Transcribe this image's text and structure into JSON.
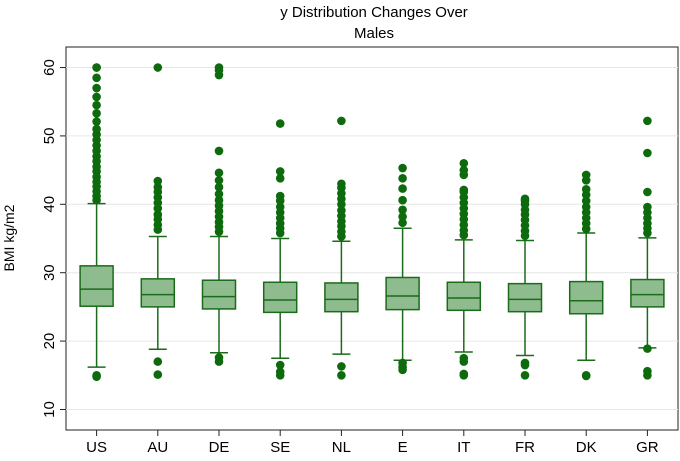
{
  "chart_data": {
    "type": "box",
    "title": "y Distribution Changes Over",
    "subtitle": "Males",
    "xlabel": "",
    "ylabel": "BMI kg/m2",
    "ylim": [
      7,
      63
    ],
    "yticks": [
      10,
      20,
      30,
      40,
      50,
      60
    ],
    "grid": true,
    "colors": {
      "box_fill": "#8fbc8f",
      "box_stroke": "#1a6b1a",
      "point": "#0d6b0d"
    },
    "categories": [
      "US",
      "AU",
      "DE",
      "SE",
      "NL",
      "E",
      "IT",
      "FR",
      "DK",
      "GR"
    ],
    "boxes": [
      {
        "label": "US",
        "whisker_low": 16.2,
        "q1": 25.1,
        "median": 27.6,
        "q3": 31.0,
        "whisker_high": 40.1,
        "outliers_low": [
          15.0,
          14.8
        ],
        "outliers_high": [
          40.6,
          41.2,
          41.9,
          42.6,
          43.3,
          44.0,
          44.8,
          45.5,
          46.3,
          47.0,
          47.8,
          48.6,
          49.4,
          50.2,
          51.0,
          52.1,
          53.3,
          54.5,
          55.7,
          57.0,
          58.5,
          60.0,
          60.0
        ]
      },
      {
        "label": "AU",
        "whisker_low": 18.8,
        "q1": 25.0,
        "median": 26.8,
        "q3": 29.1,
        "whisker_high": 35.3,
        "outliers_low": [
          17.0,
          15.1
        ],
        "outliers_high": [
          36.3,
          37.0,
          37.8,
          38.5,
          39.4,
          40.2,
          41.0,
          41.8,
          42.5,
          43.4,
          60.0
        ]
      },
      {
        "label": "DE",
        "whisker_low": 18.3,
        "q1": 24.7,
        "median": 26.5,
        "q3": 28.9,
        "whisker_high": 35.3,
        "outliers_low": [
          17.6,
          17.0
        ],
        "outliers_high": [
          36.0,
          36.7,
          37.4,
          38.2,
          39.0,
          39.8,
          40.6,
          41.5,
          42.5,
          43.5,
          44.6,
          47.8,
          58.9,
          59.6,
          60.0
        ]
      },
      {
        "label": "SE",
        "whisker_low": 17.5,
        "q1": 24.2,
        "median": 26.0,
        "q3": 28.6,
        "whisker_high": 35.0,
        "outliers_low": [
          16.5,
          15.5,
          15.0
        ],
        "outliers_high": [
          35.8,
          36.5,
          37.2,
          38.0,
          38.8,
          39.6,
          40.5,
          41.2,
          43.8,
          44.8,
          51.8
        ]
      },
      {
        "label": "NL",
        "whisker_low": 18.1,
        "q1": 24.3,
        "median": 26.1,
        "q3": 28.5,
        "whisker_high": 34.6,
        "outliers_low": [
          16.3,
          15.0
        ],
        "outliers_high": [
          35.3,
          36.0,
          36.8,
          37.5,
          38.3,
          39.1,
          40.0,
          40.8,
          41.6,
          42.4,
          43.0,
          52.2
        ]
      },
      {
        "label": "E",
        "whisker_low": 17.2,
        "q1": 24.6,
        "median": 26.6,
        "q3": 29.3,
        "whisker_high": 36.5,
        "outliers_low": [
          16.8,
          16.2,
          15.8
        ],
        "outliers_high": [
          37.3,
          38.2,
          39.2,
          40.6,
          42.3,
          43.8,
          45.3
        ]
      },
      {
        "label": "IT",
        "whisker_low": 18.4,
        "q1": 24.5,
        "median": 26.3,
        "q3": 28.6,
        "whisker_high": 34.8,
        "outliers_low": [
          17.5,
          17.0,
          15.2,
          15.0
        ],
        "outliers_high": [
          35.5,
          36.2,
          37.0,
          37.8,
          38.6,
          39.4,
          40.2,
          41.0,
          41.8,
          42.1,
          44.3,
          45.0,
          46.0
        ]
      },
      {
        "label": "FR",
        "whisker_low": 17.9,
        "q1": 24.3,
        "median": 26.1,
        "q3": 28.4,
        "whisker_high": 34.7,
        "outliers_low": [
          16.8,
          16.5,
          15.0
        ],
        "outliers_high": [
          35.4,
          36.1,
          36.9,
          37.7,
          38.5,
          39.2,
          40.0,
          40.5,
          40.8
        ]
      },
      {
        "label": "DK",
        "whisker_low": 17.2,
        "q1": 24.0,
        "median": 25.9,
        "q3": 28.7,
        "whisker_high": 35.8,
        "outliers_low": [
          15.0,
          14.9
        ],
        "outliers_high": [
          36.4,
          37.2,
          38.0,
          38.8,
          39.6,
          40.5,
          41.4,
          42.2,
          43.5,
          44.3
        ]
      },
      {
        "label": "GR",
        "whisker_low": 19.0,
        "q1": 25.0,
        "median": 26.8,
        "q3": 29.0,
        "whisker_high": 35.1,
        "outliers_low": [
          18.9,
          15.6,
          15.0
        ],
        "outliers_high": [
          35.8,
          36.5,
          37.2,
          38.0,
          38.8,
          39.6,
          41.8,
          47.5,
          52.2
        ]
      }
    ]
  }
}
